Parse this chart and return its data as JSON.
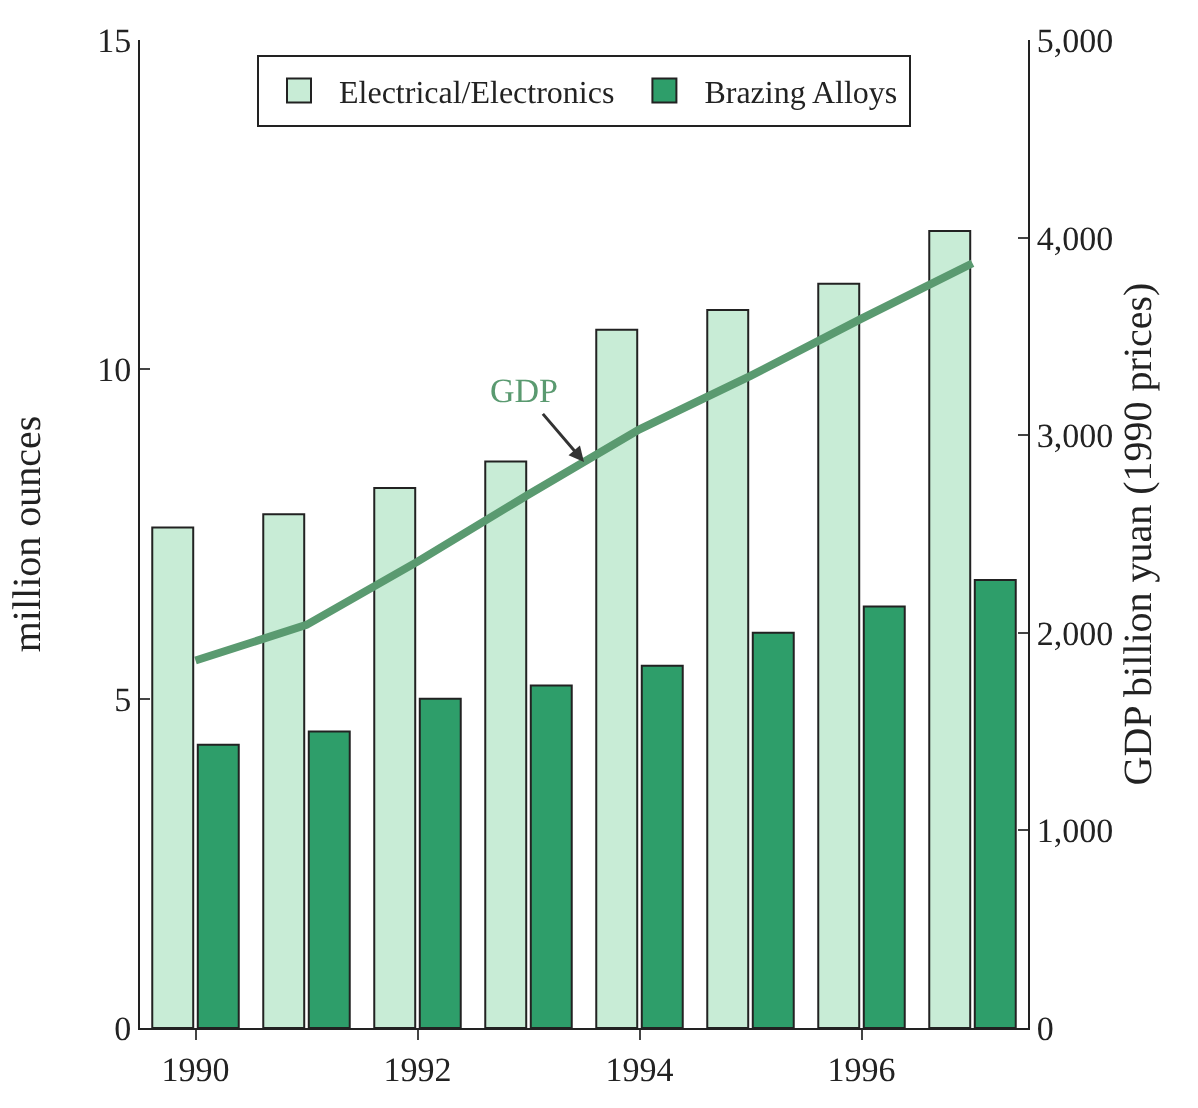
{
  "chart_data": {
    "type": "bar",
    "categories": [
      "1990",
      null,
      "1992",
      null,
      "1994",
      null,
      "1996",
      null
    ],
    "ylabel": "million ounces",
    "y2label": "GDP billion yuan (1990 prices)",
    "ylim": [
      0,
      15
    ],
    "yticks": [
      0,
      5,
      10,
      15
    ],
    "y2lim": [
      0,
      5000
    ],
    "y2ticks": [
      {
        "value": 0,
        "label": "0"
      },
      {
        "value": 1000,
        "label": "1,000"
      },
      {
        "value": 2000,
        "label": "2,000"
      },
      {
        "value": 3000,
        "label": "3,000"
      },
      {
        "value": 4000,
        "label": "4,000"
      },
      {
        "value": 5000,
        "label": "5,000"
      }
    ],
    "legend": "top",
    "grid": false,
    "series": [
      {
        "name": "Electrical/Electronics",
        "color": "#c8ecd6",
        "values": [
          7.6,
          7.8,
          8.2,
          8.6,
          10.6,
          10.9,
          11.3,
          12.1
        ]
      },
      {
        "name": "Brazing Alloys",
        "color": "#2e9e6a",
        "values": [
          4.3,
          4.5,
          5.0,
          5.2,
          5.5,
          6.0,
          6.4,
          6.8
        ]
      },
      {
        "name": "GDP",
        "type": "line",
        "axis": "y2",
        "color": "#5a9a70",
        "values": [
          1860,
          2040,
          2360,
          2700,
          3030,
          3300,
          3590,
          3870
        ]
      }
    ]
  }
}
